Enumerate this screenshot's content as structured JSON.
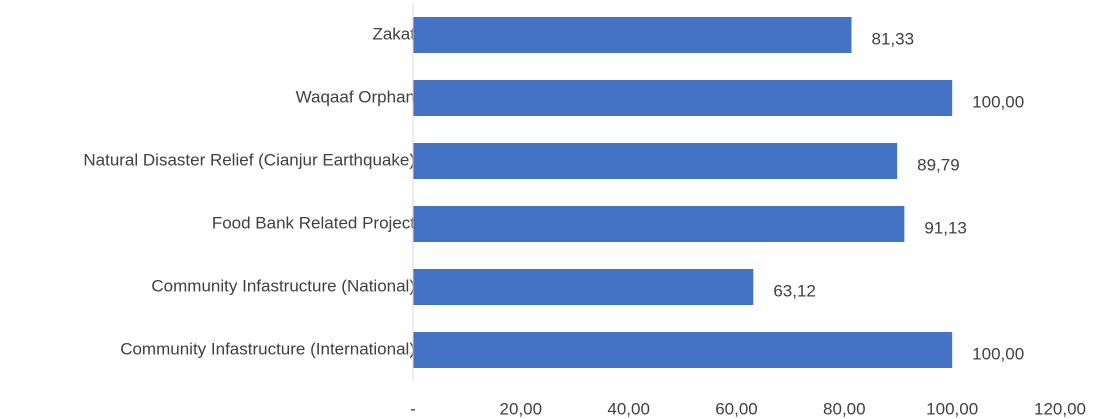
{
  "chart_data": {
    "type": "barh",
    "categories": [
      "Zakat",
      "Waqaaf Orphan",
      "Natural Disaster Relief (Cianjur Earthquake)",
      "Food Bank Related Project",
      "Community Infastructure (National)",
      "Community Infastructure (International)"
    ],
    "values": [
      81.33,
      100.0,
      89.79,
      91.13,
      63.12,
      100.0
    ],
    "value_labels": [
      "81,33",
      "100,00",
      "89,79",
      "91,13",
      "63,12",
      "100,00"
    ],
    "color": "#4472c4",
    "xlim": [
      0,
      120
    ],
    "xticks": [
      {
        "value": 0,
        "label": "-"
      },
      {
        "value": 20,
        "label": "20,00"
      },
      {
        "value": 40,
        "label": "40,00"
      },
      {
        "value": 60,
        "label": "60,00"
      },
      {
        "value": 80,
        "label": "80,00"
      },
      {
        "value": 100,
        "label": "100,00"
      },
      {
        "value": 120,
        "label": "120,00"
      }
    ],
    "grid": false
  }
}
